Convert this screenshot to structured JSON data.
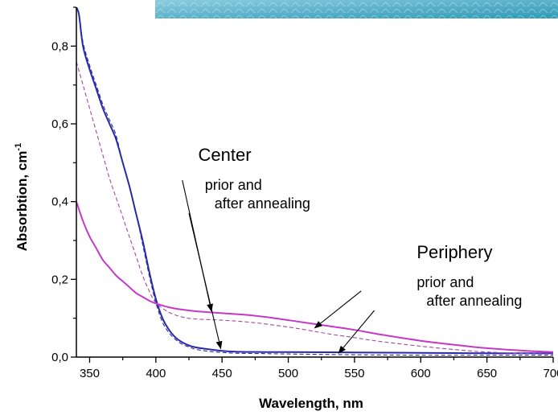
{
  "chart_data": {
    "type": "line",
    "title": "",
    "xlabel": "Wavelength, nm",
    "ylabel": "Absorbtion, cm",
    "ylabel_superscript": "-1",
    "xlim": [
      340,
      700
    ],
    "ylim": [
      0.0,
      0.9
    ],
    "xticks": [
      350,
      400,
      450,
      500,
      550,
      600,
      650,
      700
    ],
    "xtick_labels": [
      "350",
      "400",
      "450",
      "500",
      "550",
      "600",
      "650",
      "700"
    ],
    "yticks": [
      0.0,
      0.2,
      0.4,
      0.6,
      0.8
    ],
    "ytick_labels": [
      "0,0",
      "0,2",
      "0,4",
      "0,6",
      "0,8"
    ],
    "grid": false,
    "legend": "none",
    "series": [
      {
        "color": "#2a2aa8",
        "style": "solid",
        "x": [
          340,
          342,
          345,
          350,
          355,
          360,
          365,
          370,
          375,
          380,
          385,
          390,
          395,
          400,
          405,
          410,
          415,
          420,
          425,
          430,
          440,
          450,
          460,
          480,
          500,
          550,
          600,
          650,
          700
        ],
        "y": [
          0.9,
          0.88,
          0.8,
          0.74,
          0.69,
          0.64,
          0.6,
          0.56,
          0.5,
          0.44,
          0.37,
          0.3,
          0.22,
          0.15,
          0.1,
          0.07,
          0.05,
          0.038,
          0.03,
          0.025,
          0.02,
          0.016,
          0.014,
          0.013,
          0.013,
          0.012,
          0.011,
          0.01,
          0.01
        ]
      },
      {
        "color": "#2a2aa8",
        "style": "dashed",
        "x": [
          340,
          342,
          345,
          350,
          355,
          360,
          365,
          370,
          375,
          380,
          385,
          390,
          395,
          400,
          405,
          410,
          415,
          420,
          425,
          430,
          440,
          450,
          460,
          480,
          500,
          550,
          600,
          650,
          700
        ],
        "y": [
          0.9,
          0.88,
          0.81,
          0.75,
          0.7,
          0.65,
          0.61,
          0.57,
          0.5,
          0.44,
          0.37,
          0.29,
          0.21,
          0.14,
          0.09,
          0.062,
          0.045,
          0.033,
          0.026,
          0.02,
          0.015,
          0.012,
          0.01,
          0.009,
          0.008,
          0.006,
          0.005,
          0.005,
          0.005
        ]
      },
      {
        "color": "#c639c6",
        "style": "solid",
        "x": [
          340,
          345,
          350,
          355,
          360,
          365,
          370,
          375,
          380,
          385,
          390,
          395,
          400,
          410,
          420,
          430,
          450,
          470,
          490,
          510,
          530,
          550,
          570,
          600,
          630,
          650,
          680,
          700
        ],
        "y": [
          0.4,
          0.35,
          0.31,
          0.28,
          0.25,
          0.23,
          0.21,
          0.195,
          0.18,
          0.165,
          0.155,
          0.145,
          0.138,
          0.128,
          0.122,
          0.118,
          0.113,
          0.108,
          0.1,
          0.09,
          0.08,
          0.07,
          0.058,
          0.042,
          0.03,
          0.023,
          0.016,
          0.013
        ]
      },
      {
        "color": "#a04aa0",
        "style": "dashed",
        "x": [
          340,
          345,
          350,
          355,
          360,
          365,
          370,
          375,
          380,
          385,
          390,
          395,
          400,
          410,
          420,
          430,
          450,
          470,
          490,
          510,
          530,
          550,
          570,
          600,
          630,
          650,
          680,
          700
        ],
        "y": [
          0.76,
          0.7,
          0.64,
          0.58,
          0.52,
          0.46,
          0.41,
          0.36,
          0.31,
          0.26,
          0.21,
          0.17,
          0.14,
          0.115,
          0.103,
          0.098,
          0.095,
          0.09,
          0.082,
          0.072,
          0.06,
          0.05,
          0.04,
          0.028,
          0.018,
          0.013,
          0.009,
          0.008
        ]
      }
    ],
    "annotations": [
      {
        "lines": [
          "Center"
        ],
        "size": "big",
        "text_x": 432,
        "text_y": 0.505
      },
      {
        "lines": [
          "prior and",
          "after annealing"
        ],
        "size": "small",
        "text_x": 437,
        "text_y": 0.43
      },
      {
        "lines": [
          "Periphery"
        ],
        "size": "big",
        "text_x": 597,
        "text_y": 0.255
      },
      {
        "lines": [
          "prior and",
          "after annealing"
        ],
        "size": "small",
        "text_x": 597,
        "text_y": 0.18
      }
    ],
    "arrows": [
      {
        "from": [
          420,
          0.455
        ],
        "to": [
          442,
          0.118
        ]
      },
      {
        "from": [
          425,
          0.37
        ],
        "to": [
          449,
          0.022
        ]
      },
      {
        "from": [
          555,
          0.17
        ],
        "to": [
          520,
          0.075
        ]
      },
      {
        "from": [
          565,
          0.12
        ],
        "to": [
          538,
          0.01
        ]
      }
    ]
  },
  "decoration": {
    "banner_color": "#6fbcd3"
  }
}
